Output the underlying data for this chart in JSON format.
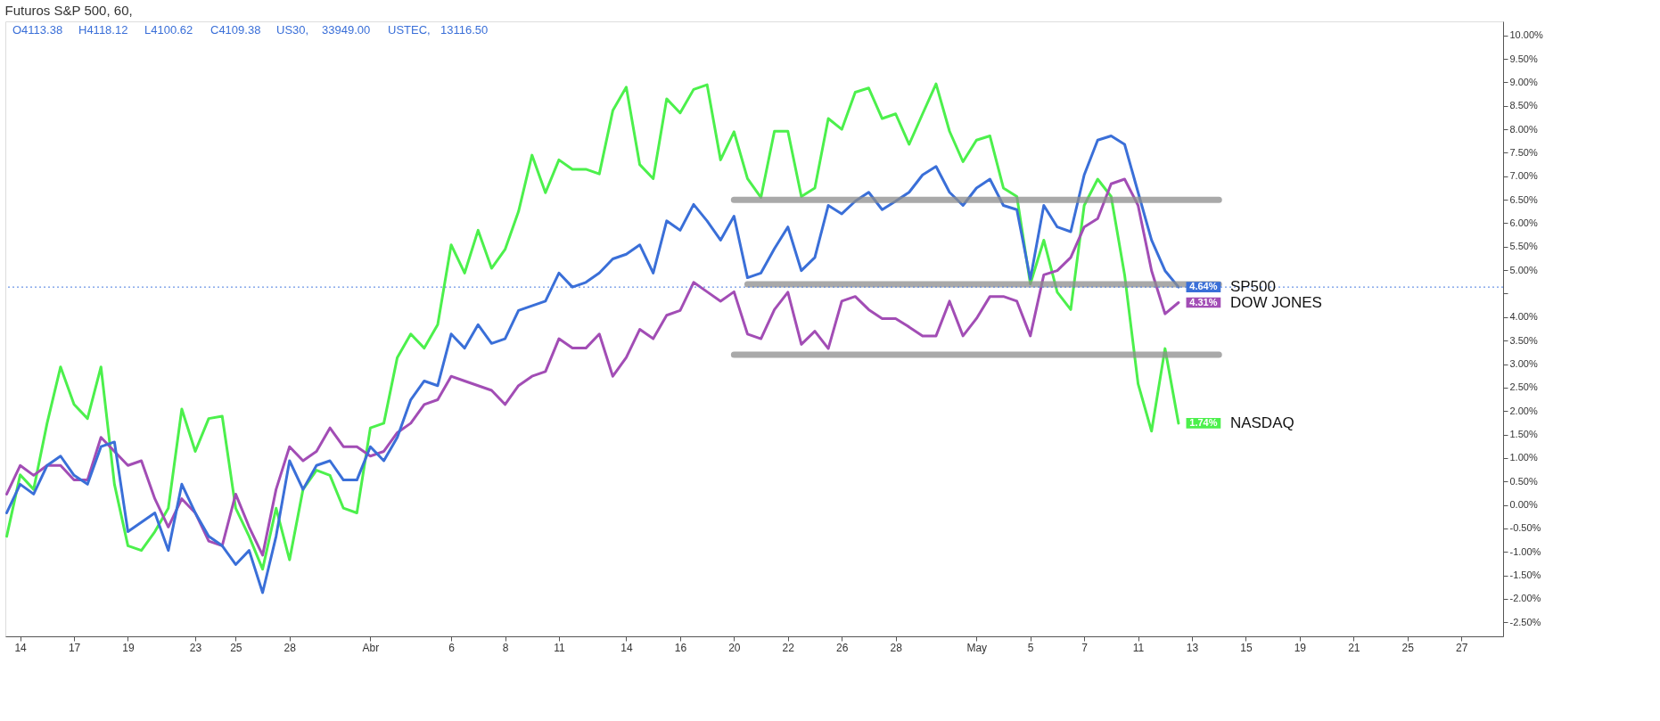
{
  "chart_data": {
    "type": "line",
    "title": "Futuros S&P 500, 60,",
    "annotations": [
      "O4113.38",
      "H4118.12",
      "L4100.62",
      "C4109.38",
      "US30,",
      "33949.00",
      "USTEC,",
      "13116.50"
    ],
    "grid": false,
    "legend": "right",
    "marker": "none",
    "line_style": "solid",
    "categories": [
      null,
      "14",
      null,
      null,
      null,
      "17",
      null,
      null,
      null,
      "19",
      null,
      null,
      null,
      null,
      "23",
      null,
      null,
      "25",
      null,
      null,
      null,
      "28",
      null,
      null,
      null,
      null,
      null,
      "Abr",
      null,
      null,
      null,
      null,
      null,
      "6",
      null,
      null,
      null,
      "8",
      null,
      null,
      null,
      "11",
      null,
      null,
      null,
      null,
      "14",
      null,
      null,
      null,
      "16",
      null,
      null,
      null,
      "20",
      null,
      null,
      null,
      "22",
      null,
      null,
      null,
      "26",
      null,
      null,
      null,
      "28",
      null,
      null,
      null,
      null,
      null,
      "May",
      null,
      null,
      null,
      "5",
      null,
      null,
      null,
      "7",
      null,
      null,
      null,
      "11",
      null,
      null,
      null,
      "13",
      null,
      null,
      null,
      "15",
      null,
      null,
      null,
      "19",
      null,
      null,
      null,
      "21",
      null,
      null,
      null,
      "25",
      null,
      null,
      null,
      "27",
      null,
      null,
      null
    ],
    "ylim": [
      -2.8,
      10.3
    ],
    "yticks": [
      {
        "value": 10,
        "label": "10.00%"
      },
      {
        "value": 9.5,
        "label": "9.50%"
      },
      {
        "value": 9,
        "label": "9.00%"
      },
      {
        "value": 8.5,
        "label": "8.50%"
      },
      {
        "value": 8,
        "label": "8.00%"
      },
      {
        "value": 7.5,
        "label": "7.50%"
      },
      {
        "value": 7,
        "label": "7.00%"
      },
      {
        "value": 6.5,
        "label": "6.50%"
      },
      {
        "value": 6,
        "label": "6.00%"
      },
      {
        "value": 5.5,
        "label": "5.50%"
      },
      {
        "value": 5,
        "label": "5.00%"
      },
      {
        "value": 4.5,
        "label": null
      },
      {
        "value": 4,
        "label": "4.00%"
      },
      {
        "value": 3.5,
        "label": "3.50%"
      },
      {
        "value": 3,
        "label": "3.00%"
      },
      {
        "value": 2.5,
        "label": "2.50%"
      },
      {
        "value": 2,
        "label": "2.00%"
      },
      {
        "value": 1.5,
        "label": "1.50%"
      },
      {
        "value": 1,
        "label": "1.00%"
      },
      {
        "value": 0.5,
        "label": "0.50%"
      },
      {
        "value": 0,
        "label": "0.00%"
      },
      {
        "value": -0.5,
        "label": "-0.50%"
      },
      {
        "value": -1,
        "label": "-1.00%"
      },
      {
        "value": -1.5,
        "label": "-1.50%"
      },
      {
        "value": -2,
        "label": "-2.00%"
      },
      {
        "value": -2.5,
        "label": "-2.50%"
      }
    ],
    "ref_lines": [
      {
        "axis": "y",
        "value": 4.64,
        "color": "#4a7be0",
        "line_style": "dotted"
      }
    ],
    "series": [
      {
        "name": "NASDAQ",
        "color": "#4cf04c",
        "values": [
          -0.67,
          0.64,
          0.33,
          1.74,
          2.94,
          2.14,
          1.84,
          2.94,
          0.44,
          -0.87,
          -0.97,
          -0.57,
          -0.07,
          2.04,
          1.14,
          1.84,
          1.89,
          -0.07,
          -0.67,
          -1.37,
          -0.07,
          -1.17,
          0.33,
          0.74,
          0.63,
          -0.07,
          -0.17,
          1.64,
          1.74,
          3.14,
          3.64,
          3.34,
          3.84,
          5.54,
          4.94,
          5.85,
          5.04,
          5.44,
          6.25,
          7.45,
          6.65,
          7.35,
          7.15,
          7.15,
          7.05,
          8.4,
          8.9,
          7.25,
          6.95,
          8.65,
          8.35,
          8.85,
          8.95,
          7.35,
          7.95,
          6.95,
          6.55,
          7.96,
          7.96,
          6.57,
          6.75,
          8.23,
          8.0,
          8.79,
          8.88,
          8.23,
          8.33,
          7.68,
          8.33,
          8.97,
          7.96,
          7.31,
          7.77,
          7.86,
          6.75,
          6.57,
          4.71,
          5.64,
          4.53,
          4.16,
          6.38,
          6.94,
          6.57,
          4.9,
          2.58,
          1.57,
          3.33,
          1.74,
          null,
          null,
          null,
          null,
          null,
          null,
          null,
          null,
          null,
          null,
          null,
          null,
          null,
          null,
          null,
          null,
          null,
          null,
          null,
          null,
          null,
          null,
          null,
          null
        ],
        "value_labels": [
          null,
          null,
          null,
          null,
          null,
          null,
          null,
          null,
          null,
          null,
          null,
          null,
          null,
          null,
          null,
          null,
          null,
          null,
          null,
          null,
          null,
          null,
          null,
          null,
          null,
          null,
          null,
          null,
          null,
          null,
          null,
          null,
          null,
          null,
          null,
          null,
          null,
          null,
          null,
          null,
          null,
          null,
          null,
          null,
          null,
          null,
          null,
          null,
          null,
          null,
          null,
          null,
          null,
          null,
          null,
          null,
          null,
          null,
          null,
          null,
          null,
          null,
          null,
          null,
          null,
          null,
          null,
          null,
          null,
          null,
          null,
          null,
          null,
          null,
          null,
          null,
          null,
          null,
          null,
          null,
          null,
          null,
          null,
          null,
          null,
          null,
          null,
          "1.74%",
          null,
          null,
          null,
          null,
          null,
          null,
          null,
          null,
          null,
          null,
          null,
          null,
          null,
          null,
          null,
          null,
          null,
          null,
          null,
          null,
          null,
          null,
          null,
          null
        ]
      },
      {
        "name": "DOW JONES",
        "color": "#a24db5",
        "values": [
          0.23,
          0.84,
          0.63,
          0.84,
          0.84,
          0.53,
          0.53,
          1.44,
          1.14,
          0.84,
          0.94,
          0.13,
          -0.47,
          0.13,
          -0.17,
          -0.77,
          -0.87,
          0.23,
          -0.47,
          -1.07,
          0.33,
          1.24,
          0.94,
          1.14,
          1.64,
          1.24,
          1.24,
          1.04,
          1.14,
          1.54,
          1.74,
          2.14,
          2.24,
          2.74,
          2.64,
          2.54,
          2.44,
          2.14,
          2.54,
          2.74,
          2.84,
          3.54,
          3.34,
          3.34,
          3.64,
          2.74,
          3.14,
          3.74,
          3.54,
          4.04,
          4.14,
          4.74,
          4.54,
          4.34,
          4.54,
          3.64,
          3.54,
          4.16,
          4.53,
          3.42,
          3.7,
          3.33,
          4.34,
          4.44,
          4.16,
          3.97,
          3.97,
          3.79,
          3.6,
          3.6,
          4.34,
          3.6,
          3.97,
          4.44,
          4.44,
          4.34,
          3.6,
          4.9,
          4.99,
          5.27,
          5.92,
          6.1,
          6.84,
          6.94,
          6.38,
          4.99,
          4.07,
          4.31,
          null,
          null,
          null,
          null,
          null,
          null,
          null,
          null,
          null,
          null,
          null,
          null,
          null,
          null,
          null,
          null,
          null,
          null,
          null,
          null,
          null,
          null,
          null,
          null
        ],
        "value_labels": [
          null,
          null,
          null,
          null,
          null,
          null,
          null,
          null,
          null,
          null,
          null,
          null,
          null,
          null,
          null,
          null,
          null,
          null,
          null,
          null,
          null,
          null,
          null,
          null,
          null,
          null,
          null,
          null,
          null,
          null,
          null,
          null,
          null,
          null,
          null,
          null,
          null,
          null,
          null,
          null,
          null,
          null,
          null,
          null,
          null,
          null,
          null,
          null,
          null,
          null,
          null,
          null,
          null,
          null,
          null,
          null,
          null,
          null,
          null,
          null,
          null,
          null,
          null,
          null,
          null,
          null,
          null,
          null,
          null,
          null,
          null,
          null,
          null,
          null,
          null,
          null,
          null,
          null,
          null,
          null,
          null,
          null,
          null,
          null,
          null,
          null,
          null,
          "4.31%",
          null,
          null,
          null,
          null,
          null,
          null,
          null,
          null,
          null,
          null,
          null,
          null,
          null,
          null,
          null,
          null,
          null,
          null,
          null,
          null,
          null,
          null,
          null,
          null
        ]
      },
      {
        "name": "SP500",
        "color": "#3a6fd8",
        "values": [
          -0.17,
          0.44,
          0.23,
          0.84,
          1.04,
          0.63,
          0.44,
          1.24,
          1.34,
          -0.57,
          -0.37,
          -0.17,
          -0.97,
          0.44,
          -0.17,
          -0.67,
          -0.87,
          -1.27,
          -0.97,
          -1.87,
          -0.67,
          0.94,
          0.33,
          0.84,
          0.94,
          0.53,
          0.53,
          1.24,
          0.94,
          1.44,
          2.24,
          2.64,
          2.54,
          3.64,
          3.34,
          3.84,
          3.44,
          3.54,
          4.14,
          4.24,
          4.34,
          4.94,
          4.64,
          4.74,
          4.94,
          5.24,
          5.34,
          5.54,
          4.94,
          6.05,
          5.85,
          6.4,
          6.05,
          5.64,
          6.15,
          4.84,
          4.94,
          5.46,
          5.92,
          4.99,
          5.27,
          6.38,
          6.2,
          6.47,
          6.66,
          6.29,
          6.47,
          6.66,
          7.03,
          7.21,
          6.66,
          6.38,
          6.75,
          6.94,
          6.38,
          6.29,
          4.81,
          6.38,
          5.92,
          5.82,
          7.03,
          7.77,
          7.86,
          7.68,
          6.66,
          5.64,
          4.99,
          4.64,
          null,
          null,
          null,
          null,
          null,
          null,
          null,
          null,
          null,
          null,
          null,
          null,
          null,
          null,
          null,
          null,
          null,
          null,
          null,
          null,
          null,
          null,
          null,
          null
        ],
        "value_labels": [
          null,
          null,
          null,
          null,
          null,
          null,
          null,
          null,
          null,
          null,
          null,
          null,
          null,
          null,
          null,
          null,
          null,
          null,
          null,
          null,
          null,
          null,
          null,
          null,
          null,
          null,
          null,
          null,
          null,
          null,
          null,
          null,
          null,
          null,
          null,
          null,
          null,
          null,
          null,
          null,
          null,
          null,
          null,
          null,
          null,
          null,
          null,
          null,
          null,
          null,
          null,
          null,
          null,
          null,
          null,
          null,
          null,
          null,
          null,
          null,
          null,
          null,
          null,
          null,
          null,
          null,
          null,
          null,
          null,
          null,
          null,
          null,
          null,
          null,
          null,
          null,
          null,
          null,
          null,
          null,
          null,
          null,
          null,
          null,
          null,
          null,
          null,
          "4.64%",
          null,
          null,
          null,
          null,
          null,
          null,
          null,
          null,
          null,
          null,
          null,
          null,
          null,
          null,
          null,
          null,
          null,
          null,
          null,
          null,
          null,
          null,
          null,
          null
        ]
      },
      {
        "color": "#8c8c8c",
        "values": [
          null,
          null,
          null,
          null,
          null,
          null,
          null,
          null,
          null,
          null,
          null,
          null,
          null,
          null,
          null,
          null,
          null,
          null,
          null,
          null,
          null,
          null,
          null,
          null,
          null,
          null,
          null,
          null,
          null,
          null,
          null,
          null,
          null,
          null,
          null,
          null,
          null,
          null,
          null,
          null,
          null,
          null,
          null,
          null,
          null,
          null,
          null,
          null,
          null,
          null,
          null,
          null,
          null,
          null,
          6.5,
          6.5,
          6.5,
          6.5,
          6.5,
          6.5,
          6.5,
          6.5,
          6.5,
          6.5,
          6.5,
          6.5,
          6.5,
          6.5,
          6.5,
          6.5,
          6.5,
          6.5,
          6.5,
          6.5,
          6.5,
          6.5,
          6.5,
          6.5,
          6.5,
          6.5,
          6.5,
          6.5,
          6.5,
          6.5,
          6.5,
          6.5,
          6.5,
          6.5,
          6.5,
          6.5,
          6.5,
          null,
          null,
          null,
          null,
          null,
          null,
          null,
          null,
          null,
          null,
          null,
          null,
          null,
          null,
          null,
          null,
          null,
          null,
          null,
          null,
          null
        ]
      },
      {
        "color": "#8c8c8c",
        "values": [
          null,
          null,
          null,
          null,
          null,
          null,
          null,
          null,
          null,
          null,
          null,
          null,
          null,
          null,
          null,
          null,
          null,
          null,
          null,
          null,
          null,
          null,
          null,
          null,
          null,
          null,
          null,
          null,
          null,
          null,
          null,
          null,
          null,
          null,
          null,
          null,
          null,
          null,
          null,
          null,
          null,
          null,
          null,
          null,
          null,
          null,
          null,
          null,
          null,
          null,
          null,
          null,
          null,
          null,
          null,
          4.7,
          4.7,
          4.7,
          4.7,
          4.7,
          4.7,
          4.7,
          4.7,
          4.7,
          4.7,
          4.7,
          4.7,
          4.7,
          4.7,
          4.7,
          4.7,
          4.7,
          4.7,
          4.7,
          4.7,
          4.7,
          4.7,
          4.7,
          4.7,
          4.7,
          4.7,
          4.7,
          4.7,
          4.7,
          4.7,
          4.7,
          4.7,
          4.7,
          4.7,
          4.7,
          4.7,
          null,
          null,
          null,
          null,
          null,
          null,
          null,
          null,
          null,
          null,
          null,
          null,
          null,
          null,
          null,
          null,
          null,
          null,
          null,
          null,
          null
        ]
      },
      {
        "color": "#8c8c8c",
        "values": [
          null,
          null,
          null,
          null,
          null,
          null,
          null,
          null,
          null,
          null,
          null,
          null,
          null,
          null,
          null,
          null,
          null,
          null,
          null,
          null,
          null,
          null,
          null,
          null,
          null,
          null,
          null,
          null,
          null,
          null,
          null,
          null,
          null,
          null,
          null,
          null,
          null,
          null,
          null,
          null,
          null,
          null,
          null,
          null,
          null,
          null,
          null,
          null,
          null,
          null,
          null,
          null,
          null,
          null,
          3.2,
          3.2,
          3.2,
          3.2,
          3.2,
          3.2,
          3.2,
          3.2,
          3.2,
          3.2,
          3.2,
          3.2,
          3.2,
          3.2,
          3.2,
          3.2,
          3.2,
          3.2,
          3.2,
          3.2,
          3.2,
          3.2,
          3.2,
          3.2,
          3.2,
          3.2,
          3.2,
          3.2,
          3.2,
          3.2,
          3.2,
          3.2,
          3.2,
          3.2,
          3.2,
          3.2,
          3.2,
          null,
          null,
          null,
          null,
          null,
          null,
          null,
          null,
          null,
          null,
          null,
          null,
          null,
          null,
          null,
          null,
          null,
          null,
          null,
          null,
          null
        ]
      }
    ]
  }
}
